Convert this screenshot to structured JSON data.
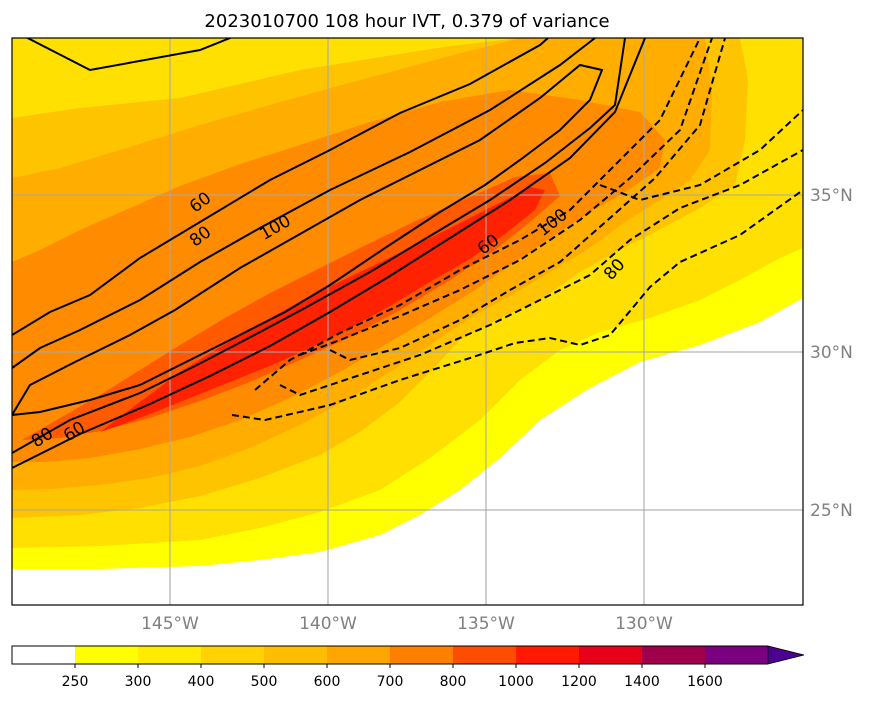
{
  "title": "2023010700 108 hour IVT, 0.379 of variance",
  "chart_data": {
    "type": "heatmap",
    "title": "2023010700 108 hour IVT, 0.379 of variance",
    "field": "IVT",
    "x_ticks": [
      "145°W",
      "140°W",
      "135°W",
      "130°W"
    ],
    "y_ticks": [
      "35°N",
      "30°N",
      "25°N"
    ],
    "lon_range": [
      -150,
      -125
    ],
    "lat_range": [
      22,
      40
    ],
    "grid": true,
    "colorbar": {
      "levels": [
        250,
        300,
        400,
        500,
        600,
        700,
        800,
        1000,
        1200,
        1400,
        1600
      ],
      "colors": [
        "#ffffff",
        "#ffff00",
        "#ffea00",
        "#ffd200",
        "#ffbd00",
        "#ffa500",
        "#ff8000",
        "#ff4d00",
        "#ff1a00",
        "#e6001a",
        "#a0004b",
        "#7a0080",
        "#4b0090"
      ],
      "extend": "max"
    },
    "contour_labels": [
      "60",
      "80",
      "100",
      "80",
      "60",
      "60",
      "100",
      "80"
    ],
    "colors": {
      "positive_contours": "#000000",
      "negative_contours": "#000000"
    }
  }
}
